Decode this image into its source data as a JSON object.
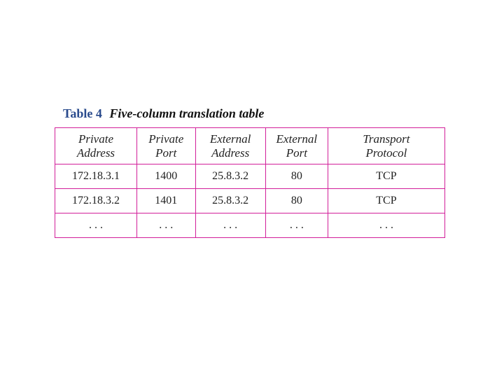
{
  "caption": {
    "label": "Table 4",
    "title": "Five-column translation table"
  },
  "table": {
    "type": "table",
    "border_color": "#d21f9a",
    "background_color": "#ffffff",
    "header_fontsize": 17,
    "cell_fontsize": 16,
    "text_color": "#222222",
    "columns": [
      {
        "key": "private_address",
        "label_l1": "Private",
        "label_l2": "Address",
        "width_pct": 21
      },
      {
        "key": "private_port",
        "label_l1": "Private",
        "label_l2": "Port",
        "width_pct": 15
      },
      {
        "key": "external_address",
        "label_l1": "External",
        "label_l2": "Address",
        "width_pct": 18
      },
      {
        "key": "external_port",
        "label_l1": "External",
        "label_l2": "Port",
        "width_pct": 16
      },
      {
        "key": "transport_proto",
        "label_l1": "Transport",
        "label_l2": "Protocol",
        "width_pct": 30
      }
    ],
    "rows": [
      {
        "private_address": "172.18.3.1",
        "private_port": "1400",
        "external_address": "25.8.3.2",
        "external_port": "80",
        "transport_proto": "TCP"
      },
      {
        "private_address": "172.18.3.2",
        "private_port": "1401",
        "external_address": "25.8.3.2",
        "external_port": "80",
        "transport_proto": "TCP"
      },
      {
        "private_address": ". . .",
        "private_port": ". . .",
        "external_address": ". . .",
        "external_port": ". . .",
        "transport_proto": ". . ."
      }
    ]
  },
  "colors": {
    "caption_label": "#2a4b8d",
    "caption_title": "#111111",
    "table_border": "#d21f9a",
    "page_bg": "#ffffff"
  }
}
